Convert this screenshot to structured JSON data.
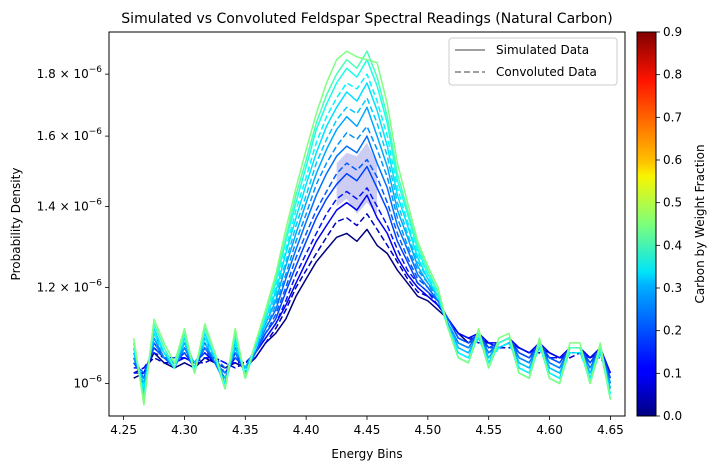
{
  "chart_data": {
    "type": "line",
    "title": "Simulated vs Convoluted Feldspar Spectral Readings (Natural Carbon)",
    "xlabel": "Energy Bins",
    "ylabel": "Probability Density",
    "xlim": [
      4.238,
      4.662
    ],
    "ylim": [
      9.4e-07,
      1.95e-06
    ],
    "yscale": "log",
    "grid": false,
    "legend_position": "top-right",
    "legend": [
      {
        "label": "Simulated Data",
        "style": "solid",
        "color": "#808080"
      },
      {
        "label": "Convoluted Data",
        "style": "dashed",
        "color": "#808080"
      }
    ],
    "x_ticks": [
      4.25,
      4.3,
      4.35,
      4.4,
      4.45,
      4.5,
      4.55,
      4.6,
      4.65
    ],
    "x_tick_labels": [
      "4.25",
      "4.30",
      "4.35",
      "4.40",
      "4.45",
      "4.50",
      "4.55",
      "4.60",
      "4.65"
    ],
    "y_ticks": [
      1e-06,
      1.2e-06,
      1.4e-06,
      1.6e-06,
      1.8e-06
    ],
    "y_tick_labels": [
      {
        "mantissa": "10",
        "exp": "−6"
      },
      {
        "mantissa": "1.2 × 10",
        "exp": "−6"
      },
      {
        "mantissa": "1.4 × 10",
        "exp": "−6"
      },
      {
        "mantissa": "1.6 × 10",
        "exp": "−6"
      },
      {
        "mantissa": "1.8 × 10",
        "exp": "−6"
      }
    ],
    "colorbar": {
      "label": "Carbon by Weight Fraction",
      "colormap": "jet",
      "range": [
        0.0,
        0.9
      ],
      "ticks": [
        "0.0",
        "0.1",
        "0.2",
        "0.3",
        "0.4",
        "0.5",
        "0.6",
        "0.7",
        "0.8",
        "0.9"
      ]
    },
    "band": {
      "fill_color": "#bcbcf0",
      "x": [
        4.425,
        4.4333,
        4.4417,
        4.45,
        4.4583
      ],
      "upper": [
        1.52e-06,
        1.55e-06,
        1.54e-06,
        1.58e-06,
        1.52e-06
      ],
      "lower": [
        1.4e-06,
        1.42e-06,
        1.38e-06,
        1.41e-06,
        1.38e-06
      ]
    },
    "x": [
      4.2583,
      4.2667,
      4.275,
      4.2833,
      4.2917,
      4.3,
      4.3083,
      4.3167,
      4.325,
      4.3333,
      4.3417,
      4.35,
      4.3583,
      4.3667,
      4.375,
      4.3833,
      4.3917,
      4.4,
      4.4083,
      4.4167,
      4.425,
      4.4333,
      4.4417,
      4.45,
      4.4583,
      4.4667,
      4.475,
      4.4833,
      4.4917,
      4.5,
      4.5083,
      4.5167,
      4.525,
      4.5333,
      4.5417,
      4.55,
      4.5583,
      4.5667,
      4.575,
      4.5833,
      4.5917,
      4.6,
      4.6083,
      4.6167,
      4.625,
      4.6333,
      4.6417,
      4.65
    ],
    "series": [
      {
        "carbon": 0.0,
        "style": "solid",
        "values": [
          1.01e-06,
          1.02e-06,
          1.06e-06,
          1.04e-06,
          1.03e-06,
          1.04e-06,
          1.03e-06,
          1.05e-06,
          1.04e-06,
          1.03e-06,
          1.04e-06,
          1.03e-06,
          1.05e-06,
          1.08e-06,
          1.1e-06,
          1.13e-06,
          1.18e-06,
          1.22e-06,
          1.26e-06,
          1.29e-06,
          1.32e-06,
          1.33e-06,
          1.31e-06,
          1.34e-06,
          1.3e-06,
          1.28e-06,
          1.24e-06,
          1.21e-06,
          1.18e-06,
          1.17e-06,
          1.15e-06,
          1.13e-06,
          1.1e-06,
          1.08e-06,
          1.09e-06,
          1.08e-06,
          1.07e-06,
          1.08e-06,
          1.07e-06,
          1.06e-06,
          1.07e-06,
          1.06e-06,
          1.05e-06,
          1.06e-06,
          1.06e-06,
          1.05e-06,
          1.06e-06,
          1.02e-06
        ]
      },
      {
        "carbon": 0.06,
        "style": "dashed",
        "values": [
          1.02e-06,
          1.03e-06,
          1.05e-06,
          1.04e-06,
          1.04e-06,
          1.05e-06,
          1.04e-06,
          1.04e-06,
          1.05e-06,
          1.04e-06,
          1.03e-06,
          1.04e-06,
          1.05e-06,
          1.08e-06,
          1.11e-06,
          1.15e-06,
          1.2e-06,
          1.24e-06,
          1.28e-06,
          1.32e-06,
          1.36e-06,
          1.37e-06,
          1.35e-06,
          1.38e-06,
          1.34e-06,
          1.3e-06,
          1.26e-06,
          1.22e-06,
          1.19e-06,
          1.18e-06,
          1.16e-06,
          1.13e-06,
          1.1e-06,
          1.09e-06,
          1.08e-06,
          1.08e-06,
          1.07e-06,
          1.07e-06,
          1.07e-06,
          1.06e-06,
          1.06e-06,
          1.05e-06,
          1.05e-06,
          1.05e-06,
          1.06e-06,
          1.05e-06,
          1.05e-06,
          1.02e-06
        ]
      },
      {
        "carbon": 0.1,
        "style": "solid",
        "values": [
          1.02e-06,
          1.02e-06,
          1.07e-06,
          1.05e-06,
          1.04e-06,
          1.05e-06,
          1.04e-06,
          1.06e-06,
          1.04e-06,
          1.02e-06,
          1.05e-06,
          1.03e-06,
          1.06e-06,
          1.09e-06,
          1.12e-06,
          1.16e-06,
          1.21e-06,
          1.26e-06,
          1.31e-06,
          1.35e-06,
          1.39e-06,
          1.41e-06,
          1.39e-06,
          1.43e-06,
          1.37e-06,
          1.33e-06,
          1.27e-06,
          1.23e-06,
          1.2e-06,
          1.18e-06,
          1.16e-06,
          1.13e-06,
          1.1e-06,
          1.09e-06,
          1.1e-06,
          1.08e-06,
          1.08e-06,
          1.09e-06,
          1.07e-06,
          1.06e-06,
          1.08e-06,
          1.06e-06,
          1.05e-06,
          1.07e-06,
          1.07e-06,
          1.05e-06,
          1.07e-06,
          1.02e-06
        ]
      },
      {
        "carbon": 0.13,
        "style": "dashed",
        "values": [
          1.03e-06,
          1.03e-06,
          1.06e-06,
          1.05e-06,
          1.05e-06,
          1.05e-06,
          1.04e-06,
          1.05e-06,
          1.05e-06,
          1.04e-06,
          1.04e-06,
          1.04e-06,
          1.06e-06,
          1.09e-06,
          1.12e-06,
          1.17e-06,
          1.23e-06,
          1.28e-06,
          1.33e-06,
          1.38e-06,
          1.42e-06,
          1.44e-06,
          1.42e-06,
          1.45e-06,
          1.4e-06,
          1.35e-06,
          1.29e-06,
          1.24e-06,
          1.21e-06,
          1.19e-06,
          1.16e-06,
          1.13e-06,
          1.1e-06,
          1.09e-06,
          1.09e-06,
          1.08e-06,
          1.07e-06,
          1.08e-06,
          1.07e-06,
          1.06e-06,
          1.07e-06,
          1.05e-06,
          1.05e-06,
          1.06e-06,
          1.06e-06,
          1.05e-06,
          1.06e-06,
          1.02e-06
        ]
      },
      {
        "carbon": 0.17,
        "style": "solid",
        "values": [
          1.04e-06,
          1.01e-06,
          1.08e-06,
          1.05e-06,
          1.04e-06,
          1.06e-06,
          1.03e-06,
          1.07e-06,
          1.04e-06,
          1.01e-06,
          1.06e-06,
          1.02e-06,
          1.06e-06,
          1.1e-06,
          1.13e-06,
          1.19e-06,
          1.25e-06,
          1.31e-06,
          1.37e-06,
          1.42e-06,
          1.46e-06,
          1.49e-06,
          1.47e-06,
          1.51e-06,
          1.45e-06,
          1.39e-06,
          1.31e-06,
          1.26e-06,
          1.21e-06,
          1.19e-06,
          1.17e-06,
          1.13e-06,
          1.09e-06,
          1.08e-06,
          1.1e-06,
          1.07e-06,
          1.08e-06,
          1.09e-06,
          1.06e-06,
          1.05e-06,
          1.08e-06,
          1.05e-06,
          1.04e-06,
          1.07e-06,
          1.07e-06,
          1.04e-06,
          1.07e-06,
          1.01e-06
        ]
      },
      {
        "carbon": 0.19,
        "style": "dashed",
        "values": [
          1.04e-06,
          1.02e-06,
          1.07e-06,
          1.05e-06,
          1.05e-06,
          1.06e-06,
          1.04e-06,
          1.06e-06,
          1.05e-06,
          1.03e-06,
          1.05e-06,
          1.03e-06,
          1.06e-06,
          1.1e-06,
          1.14e-06,
          1.2e-06,
          1.27e-06,
          1.33e-06,
          1.39e-06,
          1.44e-06,
          1.49e-06,
          1.52e-06,
          1.5e-06,
          1.53e-06,
          1.48e-06,
          1.41e-06,
          1.33e-06,
          1.27e-06,
          1.22e-06,
          1.2e-06,
          1.17e-06,
          1.13e-06,
          1.09e-06,
          1.08e-06,
          1.09e-06,
          1.07e-06,
          1.07e-06,
          1.08e-06,
          1.06e-06,
          1.05e-06,
          1.07e-06,
          1.05e-06,
          1.04e-06,
          1.06e-06,
          1.06e-06,
          1.04e-06,
          1.06e-06,
          1.01e-06
        ]
      },
      {
        "carbon": 0.21,
        "style": "solid",
        "values": [
          1.05e-06,
          1e-06,
          1.09e-06,
          1.05e-06,
          1.03e-06,
          1.07e-06,
          1.03e-06,
          1.08e-06,
          1.04e-06,
          1e-06,
          1.07e-06,
          1.02e-06,
          1.06e-06,
          1.11e-06,
          1.15e-06,
          1.22e-06,
          1.29e-06,
          1.36e-06,
          1.43e-06,
          1.49e-06,
          1.54e-06,
          1.57e-06,
          1.55e-06,
          1.6e-06,
          1.52e-06,
          1.45e-06,
          1.35e-06,
          1.29e-06,
          1.23e-06,
          1.2e-06,
          1.17e-06,
          1.12e-06,
          1.08e-06,
          1.07e-06,
          1.1e-06,
          1.06e-06,
          1.08e-06,
          1.09e-06,
          1.05e-06,
          1.04e-06,
          1.08e-06,
          1.04e-06,
          1.03e-06,
          1.07e-06,
          1.07e-06,
          1.03e-06,
          1.07e-06,
          1e-06
        ]
      },
      {
        "carbon": 0.24,
        "style": "dashed",
        "values": [
          1.05e-06,
          1.01e-06,
          1.08e-06,
          1.05e-06,
          1.04e-06,
          1.07e-06,
          1.04e-06,
          1.07e-06,
          1.05e-06,
          1.02e-06,
          1.06e-06,
          1.03e-06,
          1.07e-06,
          1.11e-06,
          1.16e-06,
          1.23e-06,
          1.31e-06,
          1.38e-06,
          1.46e-06,
          1.52e-06,
          1.57e-06,
          1.61e-06,
          1.59e-06,
          1.63e-06,
          1.56e-06,
          1.48e-06,
          1.37e-06,
          1.3e-06,
          1.24e-06,
          1.21e-06,
          1.17e-06,
          1.12e-06,
          1.08e-06,
          1.07e-06,
          1.09e-06,
          1.06e-06,
          1.07e-06,
          1.08e-06,
          1.05e-06,
          1.04e-06,
          1.07e-06,
          1.04e-06,
          1.03e-06,
          1.06e-06,
          1.06e-06,
          1.03e-06,
          1.06e-06,
          1e-06
        ]
      },
      {
        "carbon": 0.26,
        "style": "solid",
        "values": [
          1.06e-06,
          9.9e-07,
          1.1e-06,
          1.06e-06,
          1.03e-06,
          1.08e-06,
          1.03e-06,
          1.09e-06,
          1.05e-06,
          1e-06,
          1.08e-06,
          1.02e-06,
          1.07e-06,
          1.12e-06,
          1.17e-06,
          1.25e-06,
          1.33e-06,
          1.41e-06,
          1.49e-06,
          1.56e-06,
          1.62e-06,
          1.66e-06,
          1.63e-06,
          1.69e-06,
          1.6e-06,
          1.51e-06,
          1.39e-06,
          1.32e-06,
          1.25e-06,
          1.21e-06,
          1.18e-06,
          1.12e-06,
          1.07e-06,
          1.06e-06,
          1.1e-06,
          1.05e-06,
          1.08e-06,
          1.09e-06,
          1.04e-06,
          1.03e-06,
          1.08e-06,
          1.03e-06,
          1.02e-06,
          1.07e-06,
          1.07e-06,
          1.02e-06,
          1.07e-06,
          9.9e-07
        ]
      },
      {
        "carbon": 0.29,
        "style": "dashed",
        "values": [
          1.06e-06,
          1e-06,
          1.09e-06,
          1.06e-06,
          1.04e-06,
          1.08e-06,
          1.04e-06,
          1.08e-06,
          1.05e-06,
          1.01e-06,
          1.07e-06,
          1.03e-06,
          1.07e-06,
          1.12e-06,
          1.18e-06,
          1.26e-06,
          1.35e-06,
          1.43e-06,
          1.52e-06,
          1.59e-06,
          1.65e-06,
          1.69e-06,
          1.67e-06,
          1.72e-06,
          1.64e-06,
          1.54e-06,
          1.41e-06,
          1.33e-06,
          1.26e-06,
          1.22e-06,
          1.18e-06,
          1.12e-06,
          1.07e-06,
          1.06e-06,
          1.09e-06,
          1.05e-06,
          1.07e-06,
          1.08e-06,
          1.04e-06,
          1.03e-06,
          1.07e-06,
          1.03e-06,
          1.02e-06,
          1.06e-06,
          1.06e-06,
          1.02e-06,
          1.06e-06,
          9.9e-07
        ]
      },
      {
        "carbon": 0.31,
        "style": "solid",
        "values": [
          1.07e-06,
          9.8e-07,
          1.11e-06,
          1.06e-06,
          1.03e-06,
          1.09e-06,
          1.02e-06,
          1.1e-06,
          1.05e-06,
          9.9e-07,
          1.09e-06,
          1.01e-06,
          1.07e-06,
          1.13e-06,
          1.19e-06,
          1.28e-06,
          1.37e-06,
          1.46e-06,
          1.55e-06,
          1.63e-06,
          1.69e-06,
          1.74e-06,
          1.71e-06,
          1.77e-06,
          1.68e-06,
          1.57e-06,
          1.43e-06,
          1.35e-06,
          1.27e-06,
          1.22e-06,
          1.18e-06,
          1.11e-06,
          1.06e-06,
          1.05e-06,
          1.1e-06,
          1.04e-06,
          1.08e-06,
          1.09e-06,
          1.03e-06,
          1.02e-06,
          1.08e-06,
          1.02e-06,
          1.01e-06,
          1.07e-06,
          1.07e-06,
          1.01e-06,
          1.07e-06,
          9.8e-07
        ]
      },
      {
        "carbon": 0.33,
        "style": "dashed",
        "values": [
          1.07e-06,
          9.9e-07,
          1.1e-06,
          1.06e-06,
          1.04e-06,
          1.09e-06,
          1.03e-06,
          1.09e-06,
          1.05e-06,
          1e-06,
          1.08e-06,
          1.02e-06,
          1.07e-06,
          1.13e-06,
          1.2e-06,
          1.29e-06,
          1.39e-06,
          1.48e-06,
          1.58e-06,
          1.66e-06,
          1.72e-06,
          1.77e-06,
          1.75e-06,
          1.8e-06,
          1.71e-06,
          1.6e-06,
          1.45e-06,
          1.36e-06,
          1.28e-06,
          1.23e-06,
          1.18e-06,
          1.11e-06,
          1.06e-06,
          1.05e-06,
          1.09e-06,
          1.04e-06,
          1.07e-06,
          1.08e-06,
          1.03e-06,
          1.02e-06,
          1.07e-06,
          1.02e-06,
          1.01e-06,
          1.06e-06,
          1.06e-06,
          1.01e-06,
          1.06e-06,
          9.8e-07
        ]
      },
      {
        "carbon": 0.36,
        "style": "solid",
        "values": [
          1.08e-06,
          9.7e-07,
          1.12e-06,
          1.07e-06,
          1.03e-06,
          1.1e-06,
          1.02e-06,
          1.11e-06,
          1.06e-06,
          9.9e-07,
          1.1e-06,
          1.01e-06,
          1.08e-06,
          1.14e-06,
          1.21e-06,
          1.31e-06,
          1.41e-06,
          1.51e-06,
          1.62e-06,
          1.7e-06,
          1.77e-06,
          1.82e-06,
          1.79e-06,
          1.85e-06,
          1.76e-06,
          1.64e-06,
          1.47e-06,
          1.38e-06,
          1.29e-06,
          1.23e-06,
          1.19e-06,
          1.11e-06,
          1.05e-06,
          1.04e-06,
          1.1e-06,
          1.03e-06,
          1.08e-06,
          1.09e-06,
          1.02e-06,
          1.01e-06,
          1.08e-06,
          1.01e-06,
          1e-06,
          1.07e-06,
          1.07e-06,
          1e-06,
          1.07e-06,
          9.7e-07
        ]
      },
      {
        "carbon": 0.4,
        "style": "solid",
        "values": [
          1.08e-06,
          9.7e-07,
          1.12e-06,
          1.07e-06,
          1.03e-06,
          1.1e-06,
          1.02e-06,
          1.11e-06,
          1.06e-06,
          9.9e-07,
          1.1e-06,
          1.01e-06,
          1.08e-06,
          1.14e-06,
          1.22e-06,
          1.32e-06,
          1.43e-06,
          1.53e-06,
          1.64e-06,
          1.73e-06,
          1.8e-06,
          1.85e-06,
          1.82e-06,
          1.88e-06,
          1.79e-06,
          1.66e-06,
          1.49e-06,
          1.39e-06,
          1.3e-06,
          1.24e-06,
          1.19e-06,
          1.11e-06,
          1.05e-06,
          1.04e-06,
          1.1e-06,
          1.03e-06,
          1.08e-06,
          1.09e-06,
          1.02e-06,
          1.01e-06,
          1.08e-06,
          1.01e-06,
          1e-06,
          1.07e-06,
          1.07e-06,
          1e-06,
          1.07e-06,
          9.7e-07
        ]
      },
      {
        "carbon": 0.45,
        "style": "solid",
        "values": [
          1.09e-06,
          9.6e-07,
          1.13e-06,
          1.08e-06,
          1.04e-06,
          1.11e-06,
          1.02e-06,
          1.12e-06,
          1.06e-06,
          9.9e-07,
          1.11e-06,
          1.01e-06,
          1.08e-06,
          1.15e-06,
          1.23e-06,
          1.34e-06,
          1.45e-06,
          1.56e-06,
          1.67e-06,
          1.77e-06,
          1.85e-06,
          1.88e-06,
          1.86e-06,
          1.85e-06,
          1.84e-06,
          1.7e-06,
          1.52e-06,
          1.41e-06,
          1.31e-06,
          1.25e-06,
          1.2e-06,
          1.11e-06,
          1.05e-06,
          1.04e-06,
          1.11e-06,
          1.03e-06,
          1.09e-06,
          1.1e-06,
          1.02e-06,
          1.01e-06,
          1.09e-06,
          1.01e-06,
          1e-06,
          1.08e-06,
          1.08e-06,
          1e-06,
          1.08e-06,
          9.7e-07
        ]
      }
    ]
  }
}
